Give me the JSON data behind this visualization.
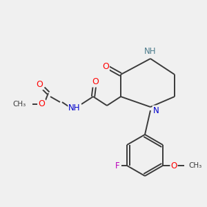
{
  "bg_color": "#f0f0f0",
  "bond_color": "#3a3a3a",
  "bond_width": 1.4,
  "atom_colors": {
    "O": "#ff0000",
    "N": "#0000cc",
    "NH": "#4a7a8a",
    "F": "#bb00bb",
    "C": "#3a3a3a"
  },
  "font_size": 8.5
}
